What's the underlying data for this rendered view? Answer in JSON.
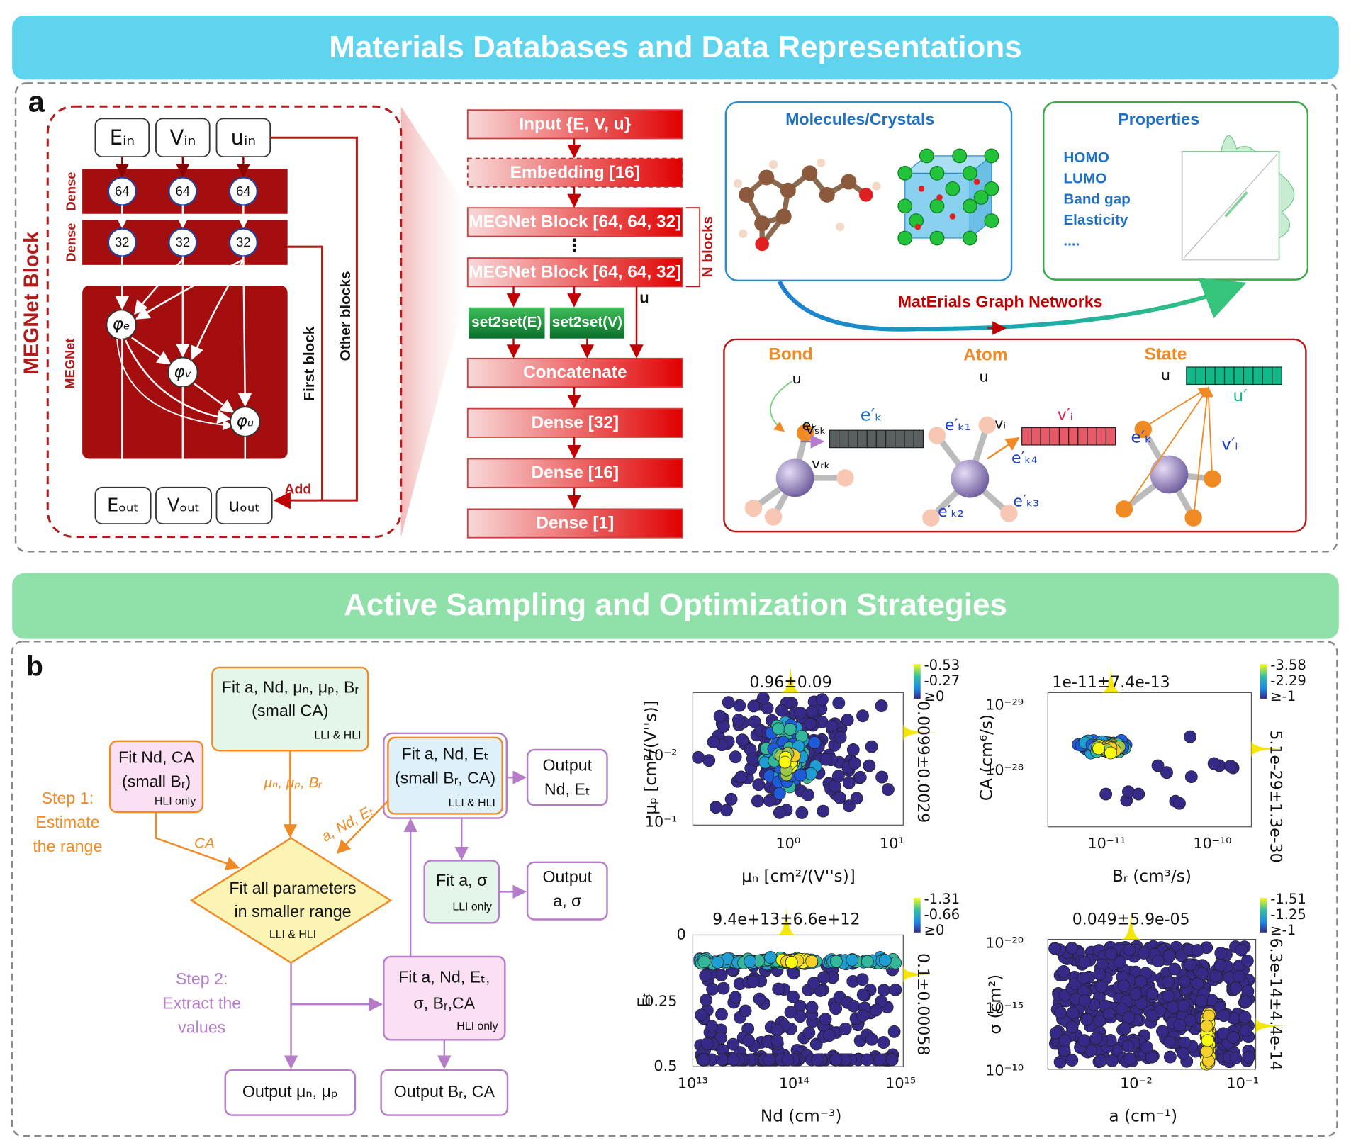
{
  "section_a": {
    "banner": "Materials Databases and Data Representations",
    "label": "a",
    "megnet_block": {
      "title": "MEGNet Block",
      "inputs": [
        "Eᵢₙ",
        "Vᵢₙ",
        "uᵢₙ"
      ],
      "outputs": [
        "Eₒᵤₜ",
        "Vₒᵤₜ",
        "uₒᵤₜ"
      ],
      "dense_labels": [
        "Dense",
        "Dense"
      ],
      "dense1": [
        "64",
        "64",
        "64"
      ],
      "dense2": [
        "32",
        "32",
        "32"
      ],
      "megnet_label": "MEGNet",
      "phis": [
        "φₑ",
        "φᵥ",
        "φᵤ"
      ],
      "first_block": "First block",
      "other_blocks": "Other blocks",
      "add": "Add"
    },
    "pipeline": {
      "input": "Input {E, V, u}",
      "embedding": "Embedding [16]",
      "blocks": [
        "MEGNet Block [64, 64, 32]",
        "MEGNet Block [64, 64, 32]"
      ],
      "ellipsis": "⋮",
      "n_blocks": "N blocks",
      "u": "u",
      "set2set": [
        "set2set(E)",
        "set2set(V)"
      ],
      "head": [
        "Concatenate",
        "Dense [32]",
        "Dense [16]",
        "Dense [1]"
      ]
    },
    "inputs_panel": {
      "title": "Molecules/Crystals"
    },
    "properties_panel": {
      "title": "Properties",
      "items": [
        "HOMO",
        "LUMO",
        "Band gap",
        "Elasticity",
        "...."
      ]
    },
    "flow_label": "MatErials Graph Networks",
    "updates": {
      "bond": {
        "title": "Bond",
        "labels": [
          "u",
          "vₛₖ",
          "eₖ",
          "e′ₖ",
          "vᵣₖ"
        ]
      },
      "atom": {
        "title": "Atom",
        "labels": [
          "u",
          "e′ₖ₁",
          "vᵢ",
          "v′ᵢ",
          "e′ₖ₄",
          "e′ₖ₂",
          "e′ₖ₃"
        ]
      },
      "state": {
        "title": "State",
        "labels": [
          "u",
          "u′",
          "e′ₖ",
          "v′ᵢ"
        ]
      }
    }
  },
  "section_b": {
    "banner": "Active Sampling and Optimization Strategies",
    "label": "b",
    "steps": [
      [
        "Step 1:",
        "Estimate",
        "the range"
      ],
      [
        "Step 2:",
        "Extract the",
        "values"
      ]
    ],
    "boxes": {
      "fit_wide": {
        "lines": [
          "Fit a, Nd, μₙ, μₚ, Bᵣ",
          "(small CA)"
        ],
        "note": "LLI & HLI"
      },
      "fit_nd_ca": {
        "lines": [
          "Fit Nd, CA",
          "(small Bᵣ)"
        ],
        "note": "HLI only"
      },
      "fit_a_nd_et": {
        "lines": [
          "Fit a, Nd, Eₜ",
          "(small Bᵣ, CA)"
        ],
        "note": "LLI & HLI"
      },
      "fit_all": {
        "lines": [
          "Fit all parameters",
          "in smaller range"
        ],
        "note": "LLI & HLI"
      },
      "fit_a_sigma": {
        "lines": [
          "Fit a, σ"
        ],
        "note": "LLI only"
      },
      "fit_hli": {
        "lines": [
          "Fit a, Nd, Eₜ,",
          "σ, Bᵣ,CA"
        ],
        "note": "HLI only"
      }
    },
    "edge_labels": [
      "μₙ, μₚ, Bᵣ",
      "CA",
      "a, Nd, Eₜ"
    ],
    "outputs": [
      [
        "Output",
        "Nd, Eₜ"
      ],
      [
        "Output",
        "a, σ"
      ],
      [
        "Output μₙ, μₚ"
      ],
      [
        "Output Bᵣ, CA"
      ]
    ],
    "plots": [
      {
        "title": "0.96±0.09",
        "xlabel": "μₙ [cm²/(V''s)]",
        "ylabel": "μₚ [cm²/(V''s)]",
        "xticks": [
          "10⁰",
          "10¹"
        ],
        "yticks": [
          "10⁻²",
          "10⁻¹"
        ],
        "side_label": "0.0099±0.0029",
        "colorbar": [
          "-0.53",
          "-0.27",
          "≥0"
        ]
      },
      {
        "title": "1e-11±7.4e-13",
        "xlabel": "Bᵣ (cm³/s)",
        "ylabel": "CA (cm⁶/s)",
        "xticks": [
          "10⁻¹¹",
          "10⁻¹⁰"
        ],
        "yticks": [
          "10⁻²⁹",
          "10⁻²⁸"
        ],
        "side_label": "5.1e-29±1.3e-30",
        "colorbar": [
          "-3.58",
          "-2.29",
          "≥-1"
        ]
      },
      {
        "title": "9.4e+13±6.6e+12",
        "xlabel": "Nd (cm⁻³)",
        "ylabel": "Eₜ",
        "xticks": [
          "10¹³",
          "10¹⁴",
          "10¹⁵"
        ],
        "yticks": [
          "0",
          "0.25",
          "0.5"
        ],
        "side_label": "0.1±0.00058",
        "colorbar": [
          "-1.31",
          "-0.66",
          "≥0"
        ]
      },
      {
        "title": "0.049±5.9e-05",
        "xlabel": "a (cm⁻¹)",
        "ylabel": "σ (cm²)",
        "xticks": [
          "10⁻²",
          "10⁻¹"
        ],
        "yticks": [
          "10⁻²⁰",
          "10⁻¹⁵",
          "10⁻¹⁰"
        ],
        "side_label": "6.3e-14±4.4e-14",
        "colorbar": [
          "-1.51",
          "-1.25",
          "≥-1"
        ]
      }
    ]
  }
}
